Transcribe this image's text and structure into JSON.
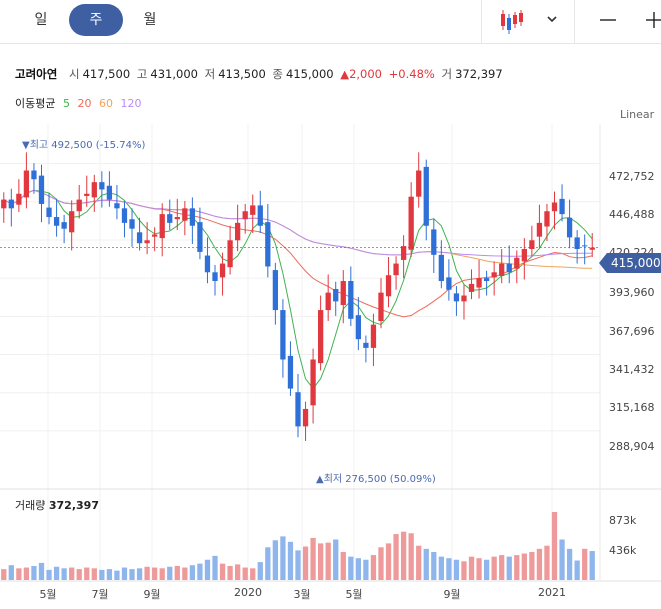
{
  "tabs": [
    {
      "label": "일"
    },
    {
      "label": "주"
    },
    {
      "label": "월"
    }
  ],
  "header": {
    "name": "고려아연",
    "open_label": "시",
    "open": "417,500",
    "high_label": "고",
    "high": "431,000",
    "low_label": "저",
    "low": "413,500",
    "close_label": "종",
    "close": "415,000",
    "change": "▲2,000",
    "change_pct": "+0.48%",
    "volume_label": "거",
    "volume": "372,397"
  },
  "ma_legend": {
    "title": "이동평균",
    "periods": [
      "5",
      "20",
      "60",
      "120"
    ],
    "colors": [
      "#3fb34f",
      "#ef6b5b",
      "#f0a35a",
      "#b98cf0"
    ]
  },
  "scale_button": "Linear",
  "current_price_tag": "415,000",
  "max_marker": "▼최고 492,500 (-15.74%)",
  "min_marker": "▲최저 276,500 (50.09%)",
  "volume_panel": {
    "title": "거래량",
    "value": "372,397",
    "axis": [
      "873k",
      "436k"
    ]
  },
  "colors": {
    "up": "#e0383e",
    "down": "#2f6fd8",
    "accent": "#3f5fa3"
  },
  "chart_data": {
    "type": "candlestick",
    "y_ticks": [
      "472,752",
      "446,488",
      "420,224",
      "393,960",
      "367,696",
      "341,432",
      "315,168",
      "288,904"
    ],
    "ylim": [
      262000,
      500000
    ],
    "x_labels": [
      "5월",
      "7월",
      "9월",
      "2020",
      "3월",
      "5월",
      "9월",
      "2021"
    ],
    "ohlc_close_weekly": [
      448000,
      442000,
      452000,
      468000,
      462000,
      445000,
      436000,
      430000,
      428000,
      440000,
      448000,
      452000,
      460000,
      455000,
      448000,
      442000,
      432000,
      428000,
      418000,
      420000,
      424000,
      438000,
      432000,
      436000,
      442000,
      430000,
      412000,
      398000,
      392000,
      404000,
      420000,
      432000,
      440000,
      444000,
      430000,
      402000,
      372000,
      338000,
      318000,
      292000,
      304000,
      338000,
      372000,
      384000,
      378000,
      392000,
      366000,
      352000,
      346000,
      362000,
      384000,
      396000,
      404000,
      416000,
      450000,
      468000,
      430000,
      410000,
      392000,
      386000,
      378000,
      382000,
      390000,
      394000,
      392000,
      398000,
      404000,
      398000,
      408000,
      414000,
      420000,
      432000,
      440000,
      446000,
      438000,
      422000,
      414000,
      416000,
      415000
    ],
    "volume_weekly_k": [
      140,
      190,
      150,
      160,
      180,
      220,
      130,
      170,
      150,
      160,
      140,
      160,
      150,
      130,
      140,
      120,
      160,
      140,
      150,
      170,
      160,
      150,
      170,
      180,
      160,
      190,
      210,
      260,
      310,
      210,
      180,
      200,
      160,
      150,
      230,
      420,
      510,
      560,
      490,
      380,
      430,
      540,
      470,
      480,
      520,
      360,
      300,
      280,
      260,
      320,
      420,
      470,
      590,
      620,
      600,
      440,
      400,
      360,
      300,
      280,
      260,
      240,
      300,
      280,
      260,
      300,
      320,
      300,
      320,
      340,
      360,
      400,
      440,
      873,
      520,
      400,
      250,
      400,
      372
    ]
  }
}
